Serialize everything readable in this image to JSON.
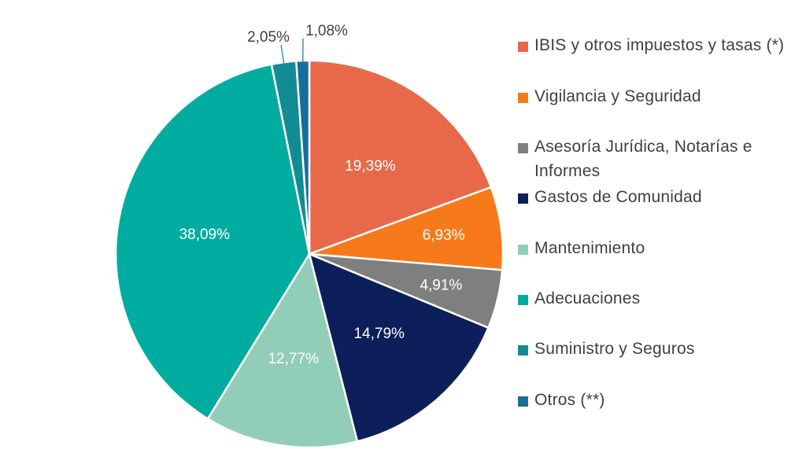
{
  "chart_data": {
    "type": "pie",
    "start_angle_deg": 0,
    "direction": "clockwise",
    "slices": [
      {
        "label": "IBIS y otros impuestos y tasas (*)",
        "value": 19.39,
        "display": "19,39%",
        "color": "#E8694A",
        "label_color": "#ffffff"
      },
      {
        "label": "Vigilancia y Seguridad",
        "value": 6.93,
        "display": "6,93%",
        "color": "#F67A1A",
        "label_color": "#ffffff"
      },
      {
        "label": "Asesoría Jurídica, Notarías e Informes",
        "value": 4.91,
        "display": "4,91%",
        "color": "#7F7F7F",
        "label_color": "#ffffff"
      },
      {
        "label": "Gastos de Comunidad",
        "value": 14.79,
        "display": "14,79%",
        "color": "#0C1F5B",
        "label_color": "#ffffff"
      },
      {
        "label": "Mantenimiento",
        "value": 12.77,
        "display": "12,77%",
        "color": "#92CDB8",
        "label_color": "#ffffff"
      },
      {
        "label": "Adecuaciones",
        "value": 38.09,
        "display": "38,09%",
        "color": "#00ACA0",
        "label_color": "#ffffff"
      },
      {
        "label": "Suministro y Seguros",
        "value": 2.05,
        "display": "2,05%",
        "color": "#118C94",
        "label_color": "#404040"
      },
      {
        "label": "Otros (**)",
        "value": 1.08,
        "display": "1,08%",
        "color": "#186E9A",
        "label_color": "#404040"
      }
    ],
    "legend_position": "right"
  }
}
